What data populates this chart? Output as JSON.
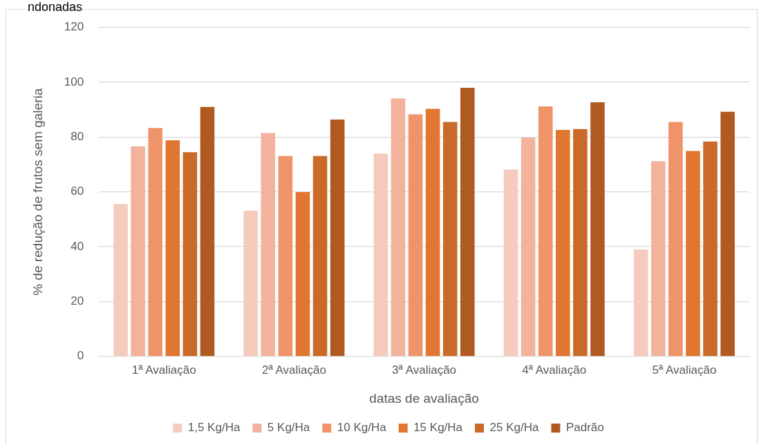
{
  "chart_data": {
    "type": "bar",
    "title": "ndonadas",
    "xlabel": "datas de avaliação",
    "ylabel": "% de redução de frutos sem galeria",
    "categories": [
      "1ª Avaliação",
      "2ª Avaliação",
      "3ª Avaliação",
      "4ª Avaliação",
      "5ª Avaliação"
    ],
    "series": [
      {
        "name": "1,5 Kg/Ha",
        "color": "#f5cbbd",
        "values": [
          55.6,
          53.2,
          74.0,
          68.2,
          39.0
        ]
      },
      {
        "name": "5 Kg/Ha",
        "color": "#f2b29b",
        "values": [
          76.6,
          81.5,
          94.1,
          79.8,
          71.2
        ]
      },
      {
        "name": "10 Kg/Ha",
        "color": "#ef9368",
        "values": [
          83.3,
          73.1,
          88.3,
          91.2,
          85.5
        ]
      },
      {
        "name": "15 Kg/Ha",
        "color": "#e0762f",
        "values": [
          78.8,
          59.9,
          90.3,
          82.6,
          74.9
        ]
      },
      {
        "name": "25 Kg/Ha",
        "color": "#c96a28",
        "values": [
          74.5,
          73.1,
          85.5,
          82.9,
          78.4
        ]
      },
      {
        "name": "Padrão",
        "color": "#b05a22",
        "values": [
          91.0,
          86.4,
          98.0,
          92.7,
          89.2
        ]
      }
    ],
    "ylim": [
      0,
      120
    ],
    "yticks": [
      0,
      20,
      40,
      60,
      80,
      100,
      120
    ],
    "grid": "y",
    "legend": "bottom"
  }
}
